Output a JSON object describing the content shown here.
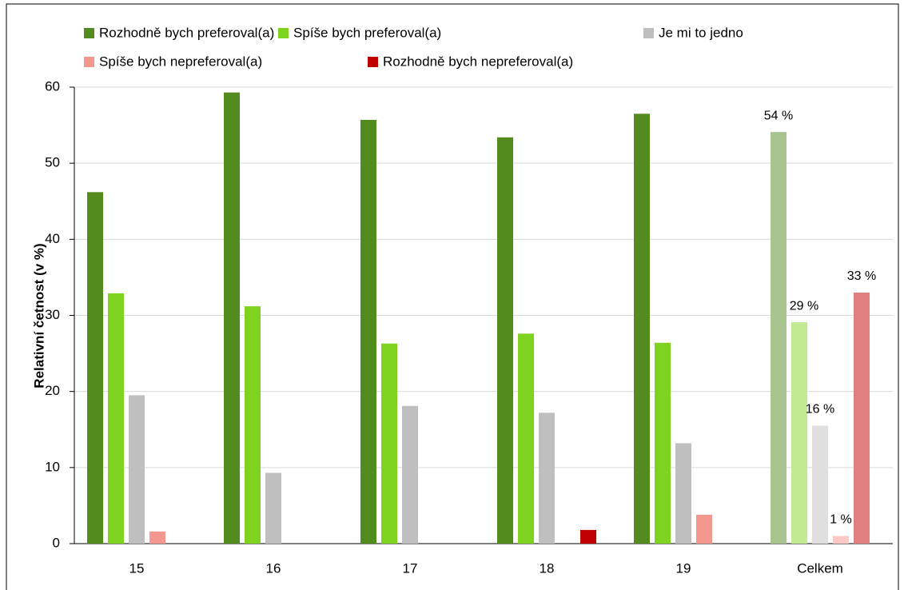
{
  "chart_data": {
    "type": "bar",
    "y_label": "Relativní četnost (v %)",
    "categories": [
      "15",
      "16",
      "17",
      "18",
      "19",
      "Celkem"
    ],
    "series": [
      {
        "name": "Rozhodně bych preferoval(a)",
        "color": "#548b1e",
        "total_color": "#a9c48e",
        "values": [
          46.2,
          59.3,
          55.7,
          53.4,
          56.5,
          54.1
        ],
        "value_labels": [
          null,
          null,
          null,
          null,
          null,
          "54 %"
        ]
      },
      {
        "name": "Spíše bych preferoval(a)",
        "color": "#7ed321",
        "total_color": "#c1ea92",
        "values": [
          32.9,
          31.2,
          26.3,
          27.6,
          26.4,
          29.1
        ],
        "value_labels": [
          null,
          null,
          null,
          null,
          null,
          "29 %"
        ]
      },
      {
        "name": "Je mi to jedno",
        "color": "#bfbfbf",
        "total_color": "#dfdfdf",
        "values": [
          19.5,
          9.3,
          18.1,
          17.2,
          13.2,
          15.5
        ],
        "value_labels": [
          null,
          null,
          null,
          null,
          null,
          "16 %"
        ]
      },
      {
        "name": "Spíše bych nepreferoval(a)",
        "color": "#f4978e",
        "total_color": "#fac9c4",
        "values": [
          1.6,
          0,
          0,
          0,
          3.8,
          1.0
        ],
        "value_labels": [
          null,
          null,
          null,
          null,
          null,
          "1 %"
        ]
      },
      {
        "name": "Rozhodně bych nepreferoval(a)",
        "color": "#c00000",
        "total_color": "#df7f7f",
        "values": [
          0,
          0,
          0,
          1.8,
          0,
          33.0
        ],
        "value_labels": [
          null,
          null,
          null,
          null,
          null,
          "33 %"
        ]
      }
    ],
    "ylim": [
      0,
      60
    ],
    "yticks": [
      0,
      10,
      20,
      30,
      40,
      50,
      60
    ],
    "grid": true,
    "legend": "top"
  }
}
